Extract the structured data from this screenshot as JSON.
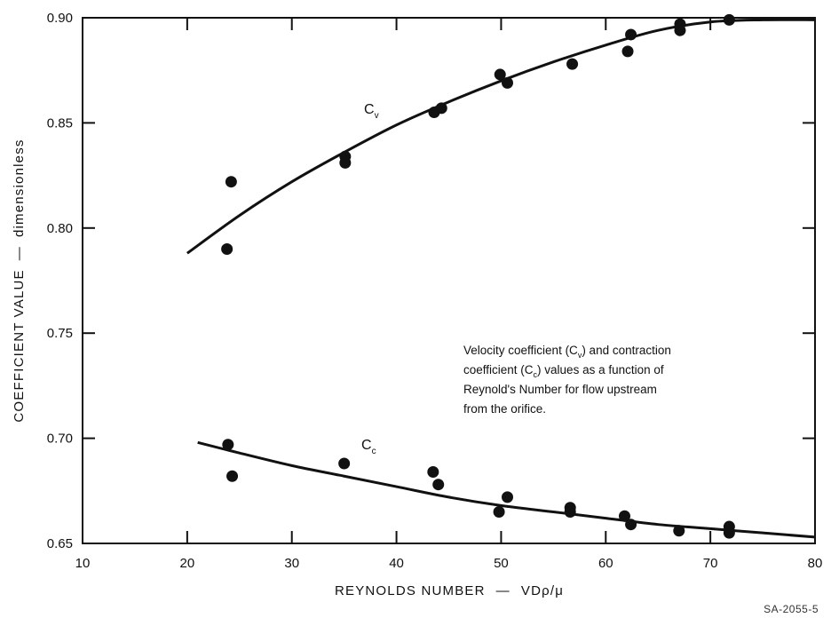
{
  "chart_data": {
    "type": "scatter",
    "xlabel": "REYNOLDS NUMBER",
    "xlabel_suffix": "VDρ/μ",
    "ylabel": "COEFFICIENT VALUE",
    "ylabel_suffix": "dimensionless",
    "xlim": [
      10,
      80
    ],
    "ylim": [
      0.65,
      0.9
    ],
    "x_ticks": [
      "10",
      "20",
      "30",
      "40",
      "50",
      "60",
      "70",
      "80"
    ],
    "y_ticks": [
      "0.65",
      "0.70",
      "0.75",
      "0.80",
      "0.85",
      "0.90"
    ],
    "grid": false,
    "series": [
      {
        "name": "Cv",
        "label_main": "C",
        "label_sub": "v",
        "points": [
          [
            24.2,
            0.822
          ],
          [
            23.8,
            0.79
          ],
          [
            35.1,
            0.834
          ],
          [
            35.1,
            0.831
          ],
          [
            43.6,
            0.855
          ],
          [
            44.3,
            0.857
          ],
          [
            49.9,
            0.873
          ],
          [
            50.6,
            0.869
          ],
          [
            56.8,
            0.878
          ],
          [
            62.1,
            0.884
          ],
          [
            62.4,
            0.892
          ],
          [
            67.1,
            0.897
          ],
          [
            67.1,
            0.894
          ],
          [
            71.8,
            0.899
          ]
        ],
        "fit_curve": [
          [
            20,
            0.788
          ],
          [
            25,
            0.806
          ],
          [
            30,
            0.822
          ],
          [
            35,
            0.836
          ],
          [
            40,
            0.849
          ],
          [
            45,
            0.86
          ],
          [
            50,
            0.87
          ],
          [
            55,
            0.879
          ],
          [
            60,
            0.887
          ],
          [
            65,
            0.894
          ],
          [
            70,
            0.898
          ],
          [
            75,
            0.899
          ],
          [
            80,
            0.899
          ]
        ]
      },
      {
        "name": "Cc",
        "label_main": "C",
        "label_sub": "c",
        "points": [
          [
            23.9,
            0.697
          ],
          [
            24.3,
            0.682
          ],
          [
            35.0,
            0.688
          ],
          [
            43.5,
            0.684
          ],
          [
            44.0,
            0.678
          ],
          [
            49.8,
            0.665
          ],
          [
            50.6,
            0.672
          ],
          [
            56.6,
            0.667
          ],
          [
            56.6,
            0.665
          ],
          [
            61.8,
            0.663
          ],
          [
            62.4,
            0.659
          ],
          [
            67.0,
            0.656
          ],
          [
            71.8,
            0.658
          ],
          [
            71.8,
            0.655
          ]
        ],
        "fit_curve": [
          [
            21,
            0.698
          ],
          [
            25,
            0.693
          ],
          [
            30,
            0.687
          ],
          [
            35,
            0.682
          ],
          [
            40,
            0.677
          ],
          [
            45,
            0.672
          ],
          [
            50,
            0.668
          ],
          [
            55,
            0.665
          ],
          [
            60,
            0.662
          ],
          [
            65,
            0.659
          ],
          [
            70,
            0.657
          ],
          [
            75,
            0.655
          ],
          [
            80,
            0.653
          ]
        ]
      }
    ],
    "annotation": {
      "line1_a": "Velocity coefficient (C",
      "line1_sub": "v",
      "line1_b": ") and contraction",
      "line2_a": "coefficient (C",
      "line2_sub": "c",
      "line2_b": ") values as a function of",
      "line3": "Reynold's Number for flow upstream",
      "line4": "from the orifice."
    },
    "figure_id": "SA-2055-5"
  }
}
